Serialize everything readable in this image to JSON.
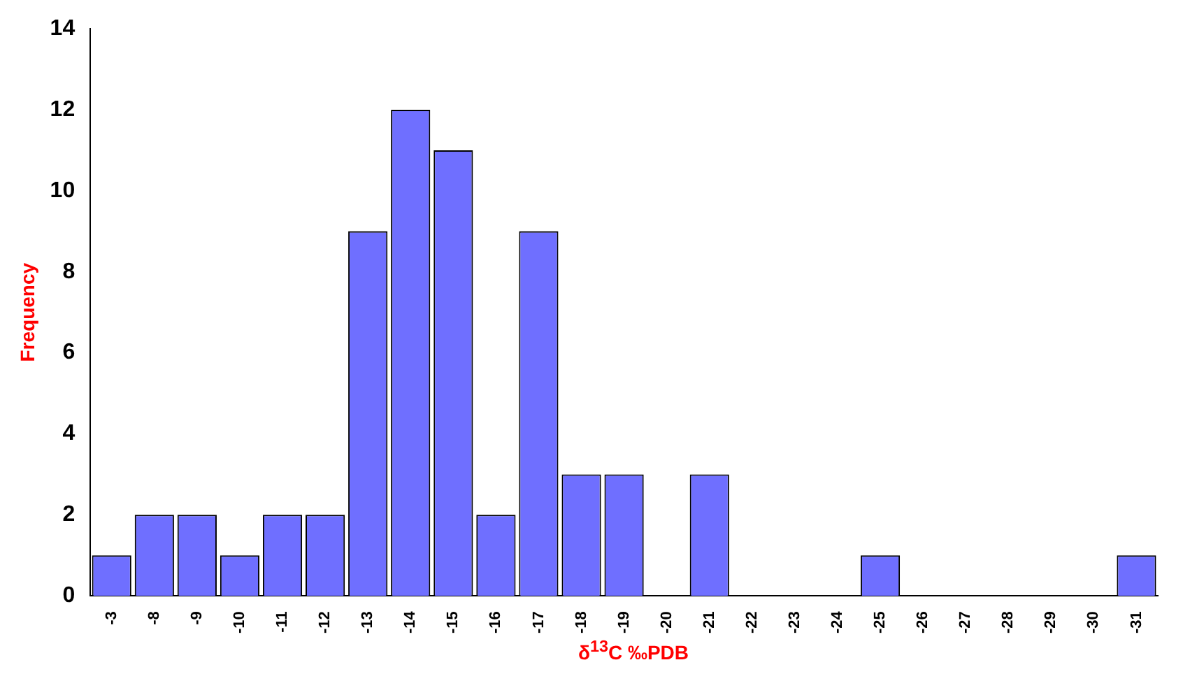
{
  "chart_data": {
    "type": "bar",
    "xlabel": "δ$^{13}$C ‰PDB",
    "ylabel": "Frequency",
    "categories": [
      "-3",
      "-8",
      "-9",
      "-10",
      "-11",
      "-12",
      "-13",
      "-14",
      "-15",
      "-16",
      "-17",
      "-18",
      "-19",
      "-20",
      "-21",
      "-22",
      "-23",
      "-24",
      "-25",
      "-26",
      "-27",
      "-28",
      "-29",
      "-30",
      "-31"
    ],
    "values": [
      1,
      2,
      2,
      1,
      2,
      2,
      9,
      12,
      11,
      2,
      9,
      3,
      3,
      0,
      3,
      0,
      0,
      0,
      1,
      0,
      0,
      0,
      0,
      0,
      1
    ],
    "color": "#6f6fff",
    "ylim": [
      0,
      14
    ],
    "yticks": [
      0,
      2,
      4,
      6,
      8,
      10,
      12,
      14
    ],
    "grid": false,
    "legend": false
  }
}
